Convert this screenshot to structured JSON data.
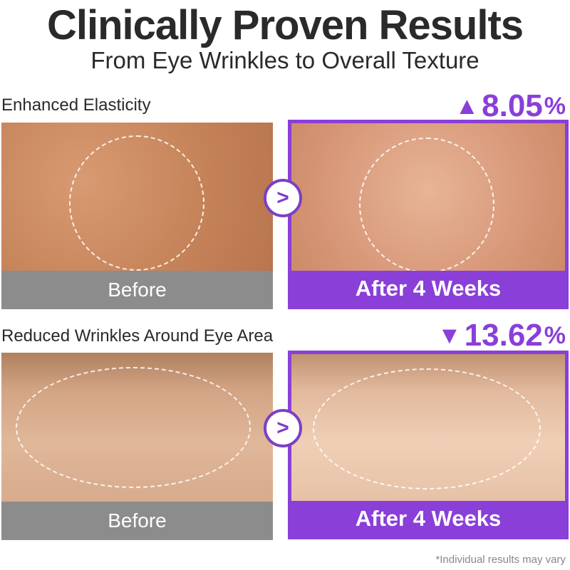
{
  "header": {
    "title": "Clinically Proven Results",
    "subtitle": "From Eye Wrinkles to Overall Texture"
  },
  "accent_color": "#8a3fd8",
  "sections": [
    {
      "label": "Enhanced Elasticity",
      "direction_icon": "triangle-up-icon",
      "direction_glyph": "▲",
      "value": "8.05",
      "unit": "%",
      "before_label": "Before",
      "after_label": "After 4 Weeks"
    },
    {
      "label": "Reduced Wrinkles Around Eye Area",
      "direction_icon": "triangle-down-icon",
      "direction_glyph": "▼",
      "value": "13.62",
      "unit": "%",
      "before_label": "Before",
      "after_label": "After 4 Weeks"
    }
  ],
  "arrow_glyph": ">",
  "footnote": "*Individual results may vary"
}
